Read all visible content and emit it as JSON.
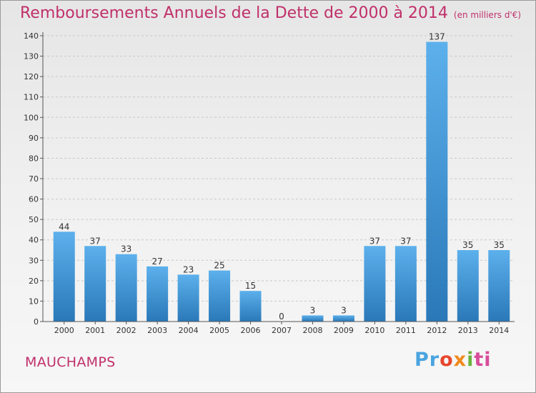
{
  "title": "Remboursements Annuels de la Dette de 2000 à 2014",
  "unit_note": "(en milliers d'€)",
  "commune": "MAUCHAMPS",
  "logo": {
    "text": "Proxiti"
  },
  "colors": {
    "title": "#c0306a",
    "bar_top": "#5cb0ec",
    "bar_bottom": "#2a78b8",
    "grid": "#c8c8c8"
  },
  "chart_data": {
    "type": "bar",
    "title": "Remboursements Annuels de la Dette de 2000 à 2014",
    "categories": [
      "2000",
      "2001",
      "2002",
      "2003",
      "2004",
      "2005",
      "2006",
      "2007",
      "2008",
      "2009",
      "2010",
      "2011",
      "2012",
      "2013",
      "2014"
    ],
    "values": [
      44,
      37,
      33,
      27,
      23,
      25,
      15,
      0,
      3,
      3,
      37,
      37,
      137,
      35,
      35
    ],
    "ylim": [
      0,
      140
    ],
    "yticks": [
      0,
      10,
      20,
      30,
      40,
      50,
      60,
      70,
      80,
      90,
      100,
      110,
      120,
      130,
      140
    ],
    "grid": true,
    "data_labels": true
  }
}
